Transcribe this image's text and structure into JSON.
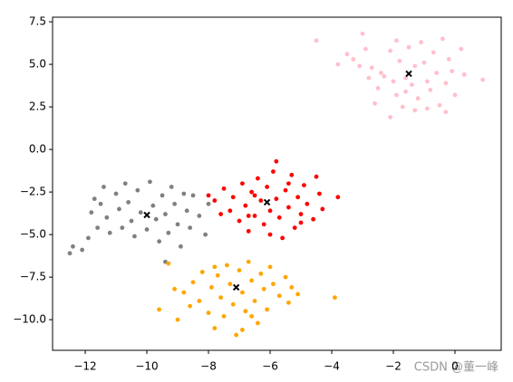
{
  "chart_data": {
    "type": "scatter",
    "xlim": [
      -13.06,
      1.5
    ],
    "ylim": [
      -11.8,
      7.77
    ],
    "xticks": [
      {
        "value": -12,
        "label": "−12"
      },
      {
        "value": -10,
        "label": "−10"
      },
      {
        "value": -8,
        "label": "−8"
      },
      {
        "value": -6,
        "label": "−6"
      },
      {
        "value": -4,
        "label": "−4"
      },
      {
        "value": -2,
        "label": "−2"
      },
      0
    ],
    "yticks": [
      {
        "value": 7.5,
        "label": "7.5"
      },
      {
        "value": 5,
        "label": "5.0"
      },
      {
        "value": 2.5,
        "label": "2.5"
      },
      {
        "value": 0,
        "label": "0.0"
      },
      {
        "value": -2.5,
        "label": "−2.5"
      },
      {
        "value": -5,
        "label": "−5.0"
      },
      {
        "value": -7.5,
        "label": "−7.5"
      },
      {
        "value": -10,
        "label": "−10.0"
      }
    ],
    "series": [
      {
        "color": "#ffc0cb",
        "marker": "o",
        "x": [
          -4.5,
          -3.5,
          -3.3,
          -3.0,
          -2.9,
          -2.7,
          -2.5,
          -2.3,
          -2.1,
          -2.0,
          -1.9,
          -1.8,
          -1.7,
          -1.6,
          -1.5,
          -1.4,
          -1.3,
          -1.2,
          -1.1,
          -1.0,
          -0.9,
          -0.8,
          -0.7,
          -0.6,
          -0.5,
          -0.4,
          -0.3,
          -0.2,
          -0.1,
          0.0,
          -3.1,
          -2.6,
          -2.1,
          -1.9,
          -1.3,
          -0.9,
          0.2,
          0.3,
          -0.3,
          0.9,
          -3.8,
          -2.4,
          -1.6,
          -2.8
        ],
        "y": [
          6.4,
          5.6,
          5.3,
          6.8,
          5.9,
          4.8,
          3.6,
          4.3,
          5.8,
          4.0,
          3.2,
          5.2,
          2.5,
          4.2,
          6.0,
          3.8,
          4.9,
          3.0,
          6.3,
          5.1,
          4.0,
          3.5,
          5.7,
          4.5,
          2.6,
          6.5,
          3.9,
          5.3,
          4.6,
          3.2,
          4.9,
          2.7,
          1.9,
          6.4,
          2.3,
          2.4,
          5.9,
          4.4,
          2.2,
          4.1,
          5.0,
          4.5,
          3.4,
          4.2
        ]
      },
      {
        "color": "#ff0000",
        "marker": "o",
        "x": [
          -8.0,
          -7.8,
          -7.5,
          -7.3,
          -7.2,
          -7.0,
          -6.9,
          -6.8,
          -6.7,
          -6.6,
          -6.5,
          -6.4,
          -6.3,
          -6.2,
          -6.1,
          -6.0,
          -5.9,
          -5.8,
          -5.7,
          -5.6,
          -5.5,
          -5.4,
          -5.3,
          -5.2,
          -5.1,
          -5.0,
          -4.9,
          -4.8,
          -4.6,
          -4.5,
          -4.4,
          -4.3,
          -3.8,
          -5.8,
          -6.7,
          -7.6,
          -6.0,
          -5.4,
          -6.5,
          -5.0
        ],
        "y": [
          -2.7,
          -3.0,
          -2.3,
          -3.6,
          -2.8,
          -4.2,
          -2.0,
          -3.3,
          -4.8,
          -2.5,
          -3.9,
          -1.7,
          -3.0,
          -4.4,
          -2.2,
          -3.6,
          -1.3,
          -2.9,
          -4.0,
          -5.2,
          -2.4,
          -3.4,
          -1.5,
          -4.6,
          -2.8,
          -3.8,
          -2.1,
          -3.2,
          -4.1,
          -1.6,
          -2.6,
          -3.5,
          -2.8,
          -0.7,
          -3.9,
          -3.8,
          -5.0,
          -2.0,
          -2.7,
          -4.3
        ]
      },
      {
        "color": "#808080",
        "marker": "o",
        "x": [
          -12.5,
          -12.4,
          -12.1,
          -11.9,
          -11.8,
          -11.7,
          -11.6,
          -11.5,
          -11.4,
          -11.3,
          -11.2,
          -11.0,
          -10.9,
          -10.8,
          -10.7,
          -10.6,
          -10.5,
          -10.4,
          -10.3,
          -10.2,
          -10.0,
          -9.9,
          -9.8,
          -9.7,
          -9.6,
          -9.5,
          -9.4,
          -9.3,
          -9.2,
          -9.1,
          -9.0,
          -8.9,
          -8.8,
          -8.7,
          -8.6,
          -8.5,
          -8.3,
          -8.1,
          -8.0,
          -9.4
        ],
        "y": [
          -6.1,
          -5.7,
          -5.9,
          -5.2,
          -3.7,
          -2.9,
          -4.6,
          -3.2,
          -2.2,
          -4.0,
          -4.9,
          -2.6,
          -3.5,
          -4.6,
          -2.0,
          -3.1,
          -4.2,
          -5.1,
          -2.4,
          -3.7,
          -4.7,
          -1.9,
          -3.3,
          -4.1,
          -5.4,
          -2.7,
          -3.8,
          -4.9,
          -2.2,
          -3.2,
          -4.4,
          -5.7,
          -2.6,
          -3.6,
          -4.6,
          -2.7,
          -3.9,
          -5.0,
          -3.2,
          -6.6
        ]
      },
      {
        "color": "#ffa500",
        "marker": "o",
        "x": [
          -9.6,
          -9.3,
          -9.0,
          -8.8,
          -8.6,
          -8.5,
          -8.3,
          -8.2,
          -8.0,
          -7.9,
          -7.8,
          -7.7,
          -7.6,
          -7.5,
          -7.4,
          -7.3,
          -7.2,
          -7.1,
          -7.0,
          -6.9,
          -6.8,
          -6.7,
          -6.6,
          -6.5,
          -6.4,
          -6.3,
          -6.2,
          -6.1,
          -6.0,
          -5.9,
          -5.7,
          -5.5,
          -5.4,
          -5.3,
          -5.1,
          -3.9,
          -9.1,
          -6.9,
          -7.8,
          -6.6
        ],
        "y": [
          -9.4,
          -6.7,
          -10.0,
          -8.4,
          -9.2,
          -7.8,
          -8.9,
          -7.2,
          -9.6,
          -8.1,
          -10.5,
          -7.4,
          -8.7,
          -9.8,
          -6.8,
          -7.9,
          -9.1,
          -10.9,
          -7.1,
          -8.4,
          -9.5,
          -6.6,
          -7.7,
          -8.9,
          -10.2,
          -7.3,
          -8.2,
          -9.4,
          -6.9,
          -7.9,
          -8.6,
          -7.5,
          -9.0,
          -8.1,
          -8.5,
          -8.7,
          -8.2,
          -10.6,
          -6.9,
          -9.8
        ]
      },
      {
        "color": "#000000",
        "marker": "x",
        "x": [
          -1.5,
          -6.1,
          -10.0,
          -7.1
        ],
        "y": [
          4.45,
          -3.1,
          -3.85,
          -8.1
        ]
      }
    ],
    "watermark": "CSDN @董一峰"
  }
}
